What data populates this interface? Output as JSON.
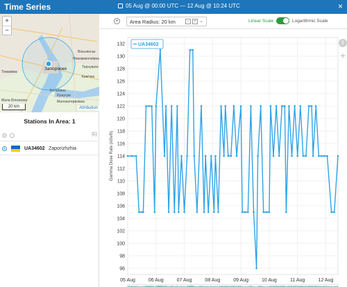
{
  "header": {
    "title": "Time Series",
    "date_range": "05 Aug @ 00:00 UTC  —  12 Aug @ 10:24 UTC",
    "close_label": "×"
  },
  "map": {
    "zoom_in": "+",
    "zoom_out": "−",
    "scale_label": "20 km",
    "attribution": "Attribution",
    "city_label": "Запоріжжя",
    "places": [
      {
        "name": "Вільнянськ"
      },
      {
        "name": "Новомиколаївка"
      },
      {
        "name": "Томаківка"
      },
      {
        "name": "Кам'яне"
      },
      {
        "name": "Балабине"
      },
      {
        "name": "Кушугум"
      },
      {
        "name": "Мала Білозерка"
      },
      {
        "name": "Малокатеринівка"
      },
      {
        "name": "Тернувате"
      }
    ]
  },
  "stations": {
    "title": "Stations In Area: 1",
    "count_badge": "[1]",
    "items": [
      {
        "id": "UA34602",
        "name": "Zaporizhzhia"
      }
    ]
  },
  "toolbar": {
    "radius_label": "Area Radius: 20 km",
    "minus": "−",
    "plus": "+",
    "chevron": "⌄",
    "linear_label": "Linear Scale",
    "log_label": "Logarithmic Scale"
  },
  "side_buttons": {
    "info": "i",
    "add": "+"
  },
  "colors": {
    "header_bg": "#1e75b9",
    "series": "#2ea3e6",
    "toggle_on": "#2e9a3e",
    "navigator_fill": "#26a69a"
  },
  "chart_data": {
    "type": "line",
    "ylabel": "Gamma Dose Rate (nSv/h)",
    "xlabel": "",
    "ylim": [
      95,
      133
    ],
    "yticks": [
      96,
      98,
      100,
      102,
      104,
      106,
      108,
      110,
      112,
      114,
      116,
      118,
      120,
      122,
      124,
      126,
      128,
      130,
      132
    ],
    "xlim": [
      0,
      7.43
    ],
    "x_ticks": [
      {
        "x": 0,
        "label": "05 Aug"
      },
      {
        "x": 1,
        "label": "06 Aug"
      },
      {
        "x": 2,
        "label": "07 Aug"
      },
      {
        "x": 3,
        "label": "08 Aug"
      },
      {
        "x": 4,
        "label": "09 Aug"
      },
      {
        "x": 5,
        "label": "10 Aug"
      },
      {
        "x": 6,
        "label": "11 Aug"
      },
      {
        "x": 7,
        "label": "12 Aug"
      }
    ],
    "grid": true,
    "legend": "top-left",
    "series": [
      {
        "name": "UA34602",
        "x": [
          0.0,
          0.15,
          0.3,
          0.4,
          0.5,
          0.55,
          0.65,
          0.75,
          0.85,
          0.95,
          1.0,
          1.15,
          1.3,
          1.35,
          1.45,
          1.55,
          1.65,
          1.75,
          1.8,
          1.9,
          2.0,
          2.1,
          2.2,
          2.3,
          2.35,
          2.45,
          2.6,
          2.7,
          2.75,
          2.85,
          2.95,
          3.05,
          3.1,
          3.2,
          3.3,
          3.4,
          3.45,
          3.55,
          3.65,
          3.75,
          3.85,
          4.0,
          4.05,
          4.15,
          4.25,
          4.35,
          4.45,
          4.55,
          4.6,
          4.7,
          4.8,
          4.9,
          5.0,
          5.05,
          5.15,
          5.25,
          5.35,
          5.45,
          5.55,
          5.6,
          5.7,
          5.8,
          5.9,
          6.0,
          6.1,
          6.2,
          6.3,
          6.4,
          6.5,
          6.55,
          6.65,
          6.75,
          6.85,
          6.95,
          7.05,
          7.2,
          7.3,
          7.43
        ],
        "y": [
          114,
          114,
          114,
          105,
          105,
          105,
          122,
          122,
          122,
          105,
          122,
          131,
          114,
          122,
          105,
          122,
          105,
          122,
          105,
          114,
          105,
          114,
          131,
          131,
          114,
          105,
          122,
          105,
          114,
          105,
          114,
          105,
          114,
          105,
          122,
          114,
          122,
          114,
          114,
          122,
          114,
          122,
          105,
          105,
          105,
          122,
          105,
          96,
          114,
          122,
          105,
          105,
          105,
          122,
          114,
          122,
          114,
          122,
          122,
          105,
          122,
          114,
          122,
          114,
          122,
          114,
          114,
          122,
          122,
          114,
          122,
          114,
          114,
          114,
          114,
          105,
          105,
          114
        ]
      }
    ]
  }
}
